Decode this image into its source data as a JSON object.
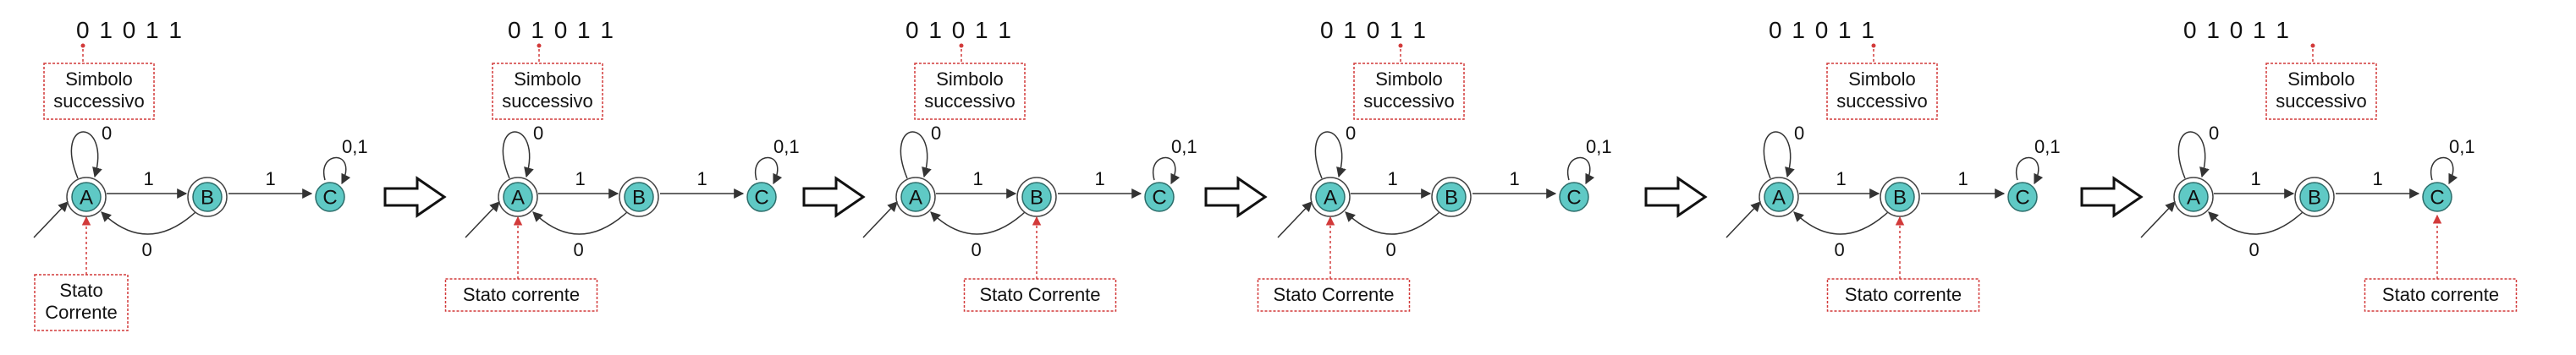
{
  "tape": "0 1 0 1 1",
  "states": {
    "a": "A",
    "b": "B",
    "c": "C"
  },
  "transitions": {
    "a_self": "0",
    "a_to_b": "1",
    "b_to_a": "0",
    "b_to_c": "1",
    "c_self": "0,1"
  },
  "frames": [
    {
      "symbol_index": 0,
      "symbol_label": [
        "Simbolo",
        "successivo"
      ],
      "current_state": "A",
      "state_label": [
        "Stato",
        "Corrente"
      ]
    },
    {
      "symbol_index": 1,
      "symbol_label": [
        "Simbolo",
        "successivo"
      ],
      "current_state": "A",
      "state_label": [
        "Stato corrente"
      ]
    },
    {
      "symbol_index": 2,
      "symbol_label": [
        "Simbolo",
        "successivo"
      ],
      "current_state": "B",
      "state_label": [
        "Stato Corrente"
      ]
    },
    {
      "symbol_index": 3,
      "symbol_label": [
        "Simbolo",
        "successivo"
      ],
      "current_state": "A",
      "state_label": [
        "Stato Corrente"
      ]
    },
    {
      "symbol_index": 4,
      "symbol_label": [
        "Simbolo",
        "successivo"
      ],
      "current_state": "B",
      "state_label": [
        "Stato corrente"
      ]
    },
    {
      "symbol_index": 5,
      "symbol_label": [
        "Simbolo",
        "successivo"
      ],
      "current_state": "C",
      "state_label": [
        "Stato corrente"
      ]
    }
  ],
  "colors": {
    "state_fill": "#5fc9c5",
    "callout": "#d23a3a"
  }
}
